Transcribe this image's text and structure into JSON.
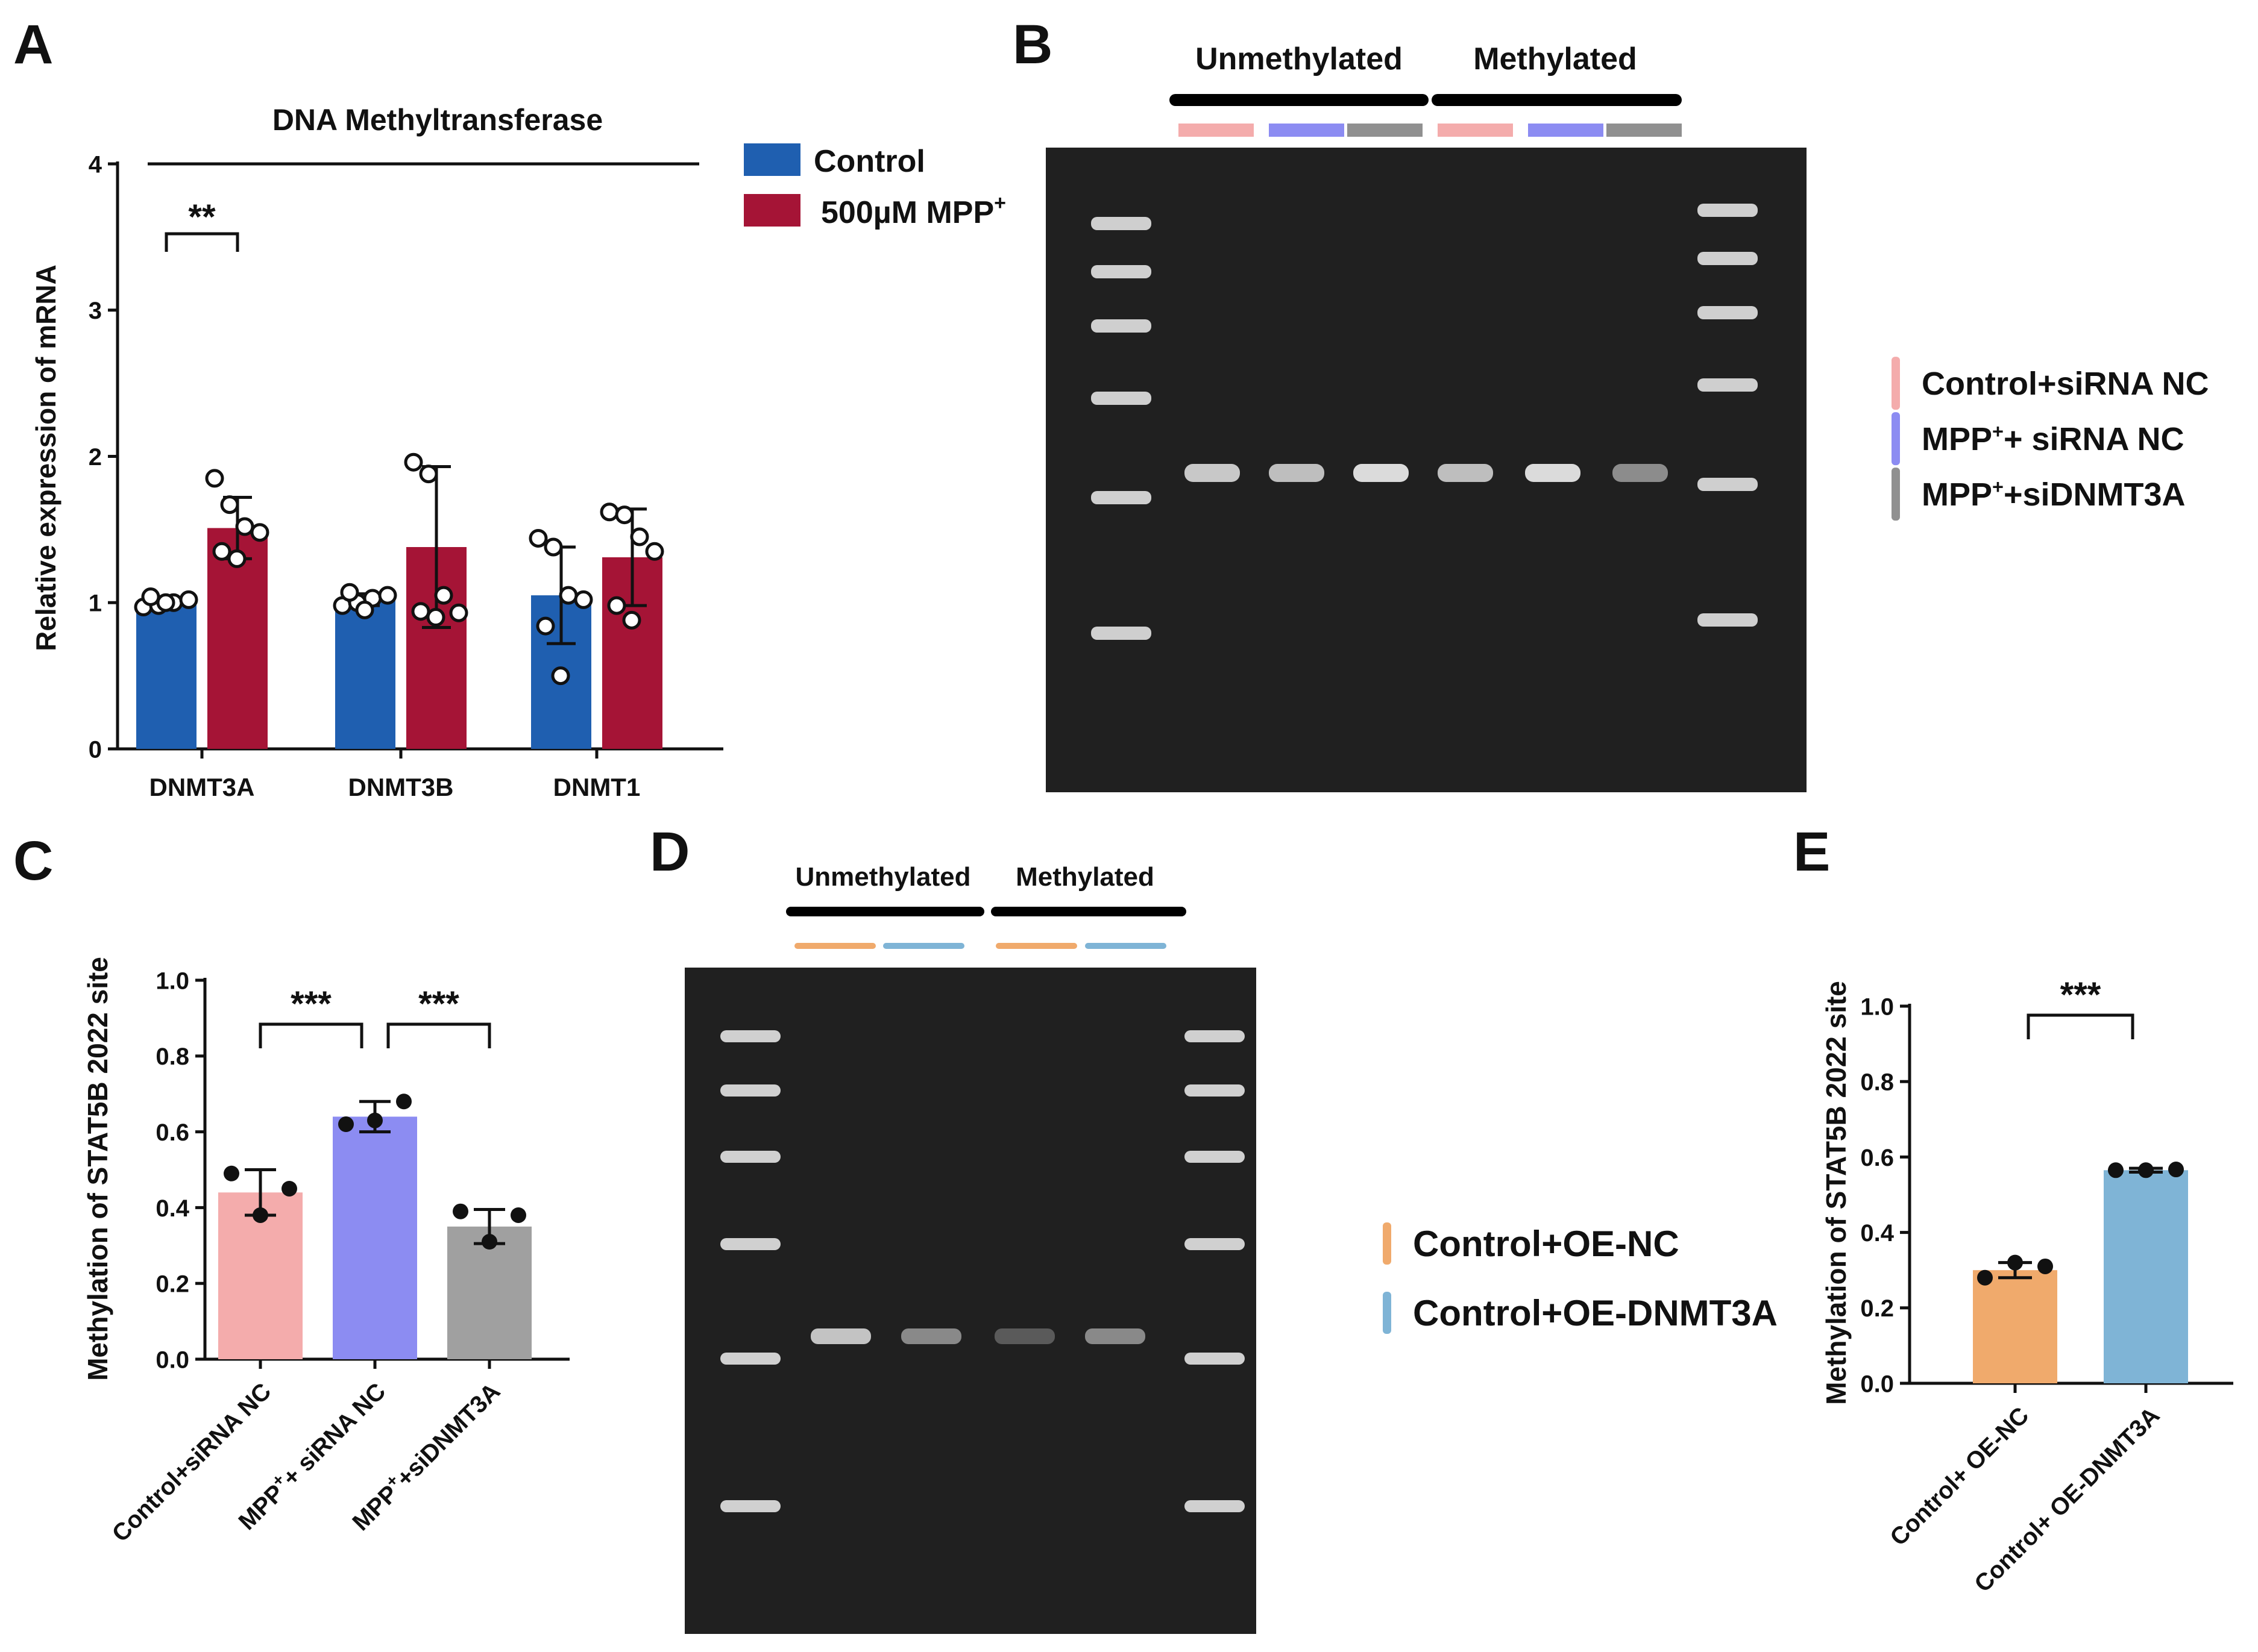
{
  "panel_labels": [
    "A",
    "B",
    "C",
    "D",
    "E"
  ],
  "chart_data": [
    {
      "panel": "A",
      "type": "bar",
      "title": "DNA Methyltransferase",
      "ylabel": "Relative expression of mRNA",
      "xlabel": "",
      "ylim": [
        0,
        4
      ],
      "yticks": [
        "0",
        "1",
        "2",
        "3",
        "4"
      ],
      "categories": [
        "DNMT3A",
        "DNMT3B",
        "DNMT1"
      ],
      "legend": {
        "placement": "top-right",
        "entries": [
          {
            "label": "Control",
            "color": "#1f5fb0"
          },
          {
            "label": "500µM MPP",
            "sup": "+",
            "color": "#a51436"
          }
        ]
      },
      "series": [
        {
          "name": "Control",
          "color": "#1f5fb0",
          "values": [
            1.0,
            1.02,
            1.05
          ],
          "err": [
            0.03,
            0.04,
            0.33
          ],
          "points": [
            [
              0.97,
              0.98,
              1.0,
              1.02,
              1.04,
              1.0
            ],
            [
              0.98,
              1.0,
              1.03,
              1.05,
              1.07,
              0.95
            ],
            [
              1.44,
              1.38,
              1.05,
              1.02,
              0.84,
              0.5
            ]
          ]
        },
        {
          "name": "500µM MPP+",
          "color": "#a51436",
          "values": [
            1.51,
            1.38,
            1.31
          ],
          "err": [
            0.21,
            0.55,
            0.33
          ],
          "points": [
            [
              1.85,
              1.67,
              1.52,
              1.48,
              1.35,
              1.3
            ],
            [
              1.96,
              1.88,
              1.05,
              0.93,
              0.94,
              0.9
            ],
            [
              1.62,
              1.6,
              1.45,
              1.35,
              0.98,
              0.88
            ]
          ]
        }
      ],
      "significance": [
        {
          "label": "**",
          "between": [
            "DNMT3A Control",
            "DNMT3A 500µM MPP+"
          ]
        }
      ]
    },
    {
      "panel": "C",
      "type": "bar",
      "ylabel": "Methylation of STAT5B 2022 site",
      "xlabel": "",
      "ylim": [
        0,
        1.0
      ],
      "yticks": [
        "0.0",
        "0.2",
        "0.4",
        "0.6",
        "0.8",
        "1.0"
      ],
      "categories": [
        "Control+siRNA NC",
        "MPP+ siRNA NC",
        "MPP+siDNMT3A"
      ],
      "category_labels": [
        {
          "main": "Control+siRNA NC",
          "sup": ""
        },
        {
          "pre": "MPP",
          "sup": "+",
          "post": "+ siRNA NC"
        },
        {
          "pre": "MPP",
          "sup": "+",
          "post": "+siDNMT3A"
        }
      ],
      "colors": [
        "#f4acac",
        "#8c8cf2",
        "#a0a0a0"
      ],
      "values": [
        0.44,
        0.64,
        0.35
      ],
      "err": [
        0.06,
        0.04,
        0.045
      ],
      "points": [
        [
          0.49,
          0.45,
          0.38
        ],
        [
          0.62,
          0.68,
          0.63
        ],
        [
          0.39,
          0.38,
          0.31
        ]
      ],
      "significance": [
        {
          "label": "***",
          "between": [
            0,
            1
          ]
        },
        {
          "label": "***",
          "between": [
            1,
            2
          ]
        }
      ]
    },
    {
      "panel": "E",
      "type": "bar",
      "ylabel": "Methylation of STAT5B 2022 site",
      "xlabel": "",
      "ylim": [
        0,
        1.0
      ],
      "yticks": [
        "0.0",
        "0.2",
        "0.4",
        "0.6",
        "0.8",
        "1.0"
      ],
      "categories": [
        "Control+ OE-NC",
        "Control+ OE-DNMT3A"
      ],
      "colors": [
        "#f0aa6c",
        "#7fb4d6"
      ],
      "values": [
        0.3,
        0.565
      ],
      "err": [
        0.02,
        0.005
      ],
      "points": [
        [
          0.28,
          0.32,
          0.31
        ],
        [
          0.565,
          0.565,
          0.567
        ]
      ],
      "significance": [
        {
          "label": "***",
          "between": [
            0,
            1
          ]
        }
      ]
    }
  ],
  "gel_B": {
    "header_labels": [
      "Unmethylated",
      "Methylated"
    ],
    "lane_colors": [
      "#f4acac",
      "#8c8cf2",
      "#909090",
      "#f4acac",
      "#8c8cf2",
      "#909090"
    ],
    "legend": [
      {
        "label": "Control+siRNA NC",
        "color": "#f4acac"
      },
      {
        "pre": "MPP",
        "sup": "+",
        "post": "+ siRNA NC",
        "color": "#8c8cf2"
      },
      {
        "pre": "MPP",
        "sup": "+",
        "post": "+siDNMT3A",
        "color": "#909090"
      }
    ]
  },
  "gel_D": {
    "header_labels": [
      "Unmethylated",
      "Methylated"
    ],
    "lane_colors": [
      "#f0aa6c",
      "#7fb4d6",
      "#f0aa6c",
      "#7fb4d6"
    ],
    "legend": [
      {
        "label": "Control+OE-NC",
        "color": "#f0aa6c"
      },
      {
        "label": "Control+OE-DNMT3A",
        "color": "#7fb4d6"
      }
    ]
  }
}
